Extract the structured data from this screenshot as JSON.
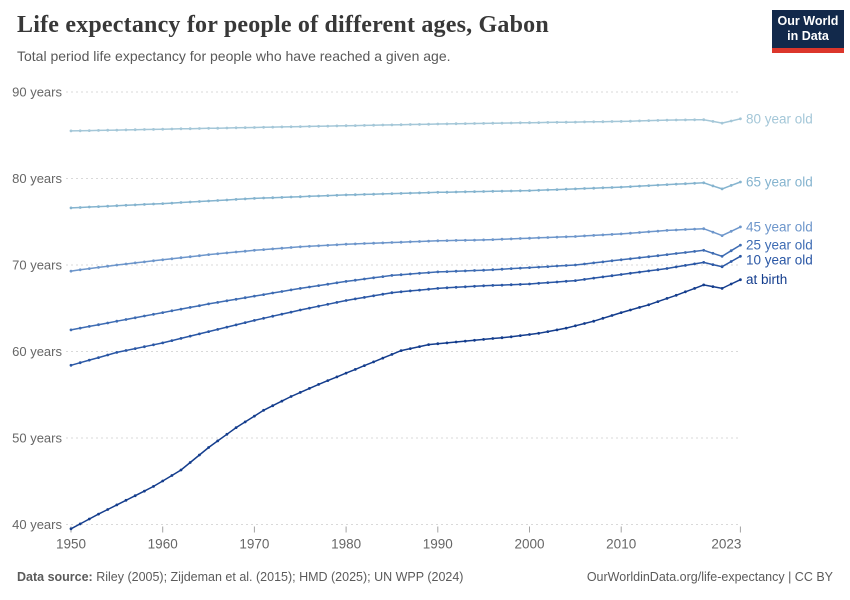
{
  "header": {
    "title": "Life expectancy for people of different ages, Gabon",
    "subtitle": "Total period life expectancy for people who have reached a given age.",
    "logo": {
      "line1": "Our World",
      "line2": "in Data"
    }
  },
  "footer": {
    "source_label": "Data source:",
    "source_text": " Riley (2005); Zijdeman et al. (2015); HMD (2025); UN WPP (2024)",
    "right_text": "OurWorldinData.org/life-expectancy | CC BY"
  },
  "colors": {
    "gridline": "#d9d9d9",
    "tick_mark": "#a3a3a3",
    "axis_text": "#666666",
    "logo_bg": "#12294b",
    "logo_red": "#dc362b"
  },
  "chart_data": {
    "type": "line",
    "title": "Life expectancy for people of different ages, Gabon",
    "subtitle": "Total period life expectancy for people who have reached a given age.",
    "xlabel": "",
    "ylabel": "",
    "x_range": [
      1950,
      2023
    ],
    "y_range": [
      40,
      90
    ],
    "x_ticks": [
      1950,
      1960,
      1970,
      1980,
      1990,
      2000,
      2010,
      2023
    ],
    "y_ticks": [
      40,
      50,
      60,
      70,
      80,
      90
    ],
    "y_tick_suffix": " years",
    "gridlines": "dashed-horizontal",
    "markers": "yearly-dots",
    "legend_position": "labels-at-line-ends",
    "series": [
      {
        "name": "80 year old",
        "slug": "80-year-old",
        "color": "#a4c7d8",
        "points": [
          [
            1950,
            85.5
          ],
          [
            1960,
            85.7
          ],
          [
            1970,
            85.9
          ],
          [
            1980,
            86.1
          ],
          [
            1990,
            86.3
          ],
          [
            2000,
            86.45
          ],
          [
            2010,
            86.6
          ],
          [
            2015,
            86.75
          ],
          [
            2019,
            86.8
          ],
          [
            2021,
            86.4
          ],
          [
            2023,
            86.9
          ]
        ]
      },
      {
        "name": "65 year old",
        "slug": "65-year-old",
        "color": "#85b4cf",
        "points": [
          [
            1950,
            76.6
          ],
          [
            1960,
            77.1
          ],
          [
            1970,
            77.7
          ],
          [
            1980,
            78.1
          ],
          [
            1990,
            78.4
          ],
          [
            2000,
            78.6
          ],
          [
            2005,
            78.8
          ],
          [
            2010,
            79.0
          ],
          [
            2015,
            79.3
          ],
          [
            2019,
            79.5
          ],
          [
            2021,
            78.8
          ],
          [
            2023,
            79.6
          ]
        ]
      },
      {
        "name": "45 year old",
        "slug": "45-year-old",
        "color": "#6d96cb",
        "points": [
          [
            1950,
            69.3
          ],
          [
            1955,
            70.0
          ],
          [
            1960,
            70.6
          ],
          [
            1965,
            71.2
          ],
          [
            1970,
            71.7
          ],
          [
            1975,
            72.1
          ],
          [
            1980,
            72.4
          ],
          [
            1985,
            72.6
          ],
          [
            1990,
            72.8
          ],
          [
            1995,
            72.9
          ],
          [
            2000,
            73.1
          ],
          [
            2005,
            73.3
          ],
          [
            2010,
            73.6
          ],
          [
            2015,
            74.0
          ],
          [
            2019,
            74.2
          ],
          [
            2021,
            73.4
          ],
          [
            2023,
            74.4
          ]
        ]
      },
      {
        "name": "25 year old",
        "slug": "25-year-old",
        "color": "#3e6cb3",
        "points": [
          [
            1950,
            62.5
          ],
          [
            1955,
            63.5
          ],
          [
            1960,
            64.5
          ],
          [
            1965,
            65.5
          ],
          [
            1970,
            66.4
          ],
          [
            1975,
            67.3
          ],
          [
            1980,
            68.1
          ],
          [
            1985,
            68.8
          ],
          [
            1990,
            69.2
          ],
          [
            1995,
            69.4
          ],
          [
            2000,
            69.7
          ],
          [
            2005,
            70.0
          ],
          [
            2010,
            70.6
          ],
          [
            2015,
            71.2
          ],
          [
            2019,
            71.7
          ],
          [
            2021,
            71.0
          ],
          [
            2023,
            72.3
          ]
        ]
      },
      {
        "name": "10 year old",
        "slug": "10-year-old",
        "color": "#2a57a5",
        "points": [
          [
            1950,
            58.4
          ],
          [
            1955,
            59.9
          ],
          [
            1960,
            61.0
          ],
          [
            1965,
            62.3
          ],
          [
            1970,
            63.6
          ],
          [
            1975,
            64.8
          ],
          [
            1980,
            65.9
          ],
          [
            1985,
            66.8
          ],
          [
            1990,
            67.3
          ],
          [
            1995,
            67.6
          ],
          [
            2000,
            67.8
          ],
          [
            2005,
            68.2
          ],
          [
            2010,
            68.9
          ],
          [
            2015,
            69.6
          ],
          [
            2019,
            70.3
          ],
          [
            2021,
            69.8
          ],
          [
            2023,
            71.0
          ]
        ]
      },
      {
        "name": "at birth",
        "slug": "at-birth",
        "color": "#143d8d",
        "points": [
          [
            1950,
            39.5
          ],
          [
            1953,
            41.2
          ],
          [
            1956,
            42.8
          ],
          [
            1959,
            44.4
          ],
          [
            1962,
            46.3
          ],
          [
            1965,
            48.9
          ],
          [
            1968,
            51.2
          ],
          [
            1971,
            53.2
          ],
          [
            1974,
            54.8
          ],
          [
            1977,
            56.2
          ],
          [
            1980,
            57.5
          ],
          [
            1983,
            58.8
          ],
          [
            1986,
            60.1
          ],
          [
            1989,
            60.8
          ],
          [
            1992,
            61.1
          ],
          [
            1995,
            61.4
          ],
          [
            1998,
            61.7
          ],
          [
            2001,
            62.1
          ],
          [
            2004,
            62.7
          ],
          [
            2007,
            63.5
          ],
          [
            2010,
            64.5
          ],
          [
            2013,
            65.4
          ],
          [
            2016,
            66.5
          ],
          [
            2019,
            67.7
          ],
          [
            2020,
            67.5
          ],
          [
            2021,
            67.3
          ],
          [
            2022,
            67.8
          ],
          [
            2023,
            68.3
          ]
        ]
      }
    ]
  }
}
